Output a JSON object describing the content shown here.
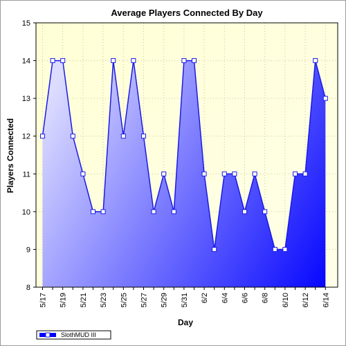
{
  "chart_data": {
    "type": "area",
    "title": "Average Players Connected By Day",
    "xlabel": "Day",
    "ylabel": "Players Connected",
    "ylim": [
      8,
      15
    ],
    "yticks": [
      8,
      9,
      10,
      11,
      12,
      13,
      14,
      15
    ],
    "grid": true,
    "legend_position": "bottom-left",
    "x": [
      "5/17",
      "5/18",
      "5/19",
      "5/20",
      "5/21",
      "5/22",
      "5/23",
      "5/24",
      "5/25",
      "5/26",
      "5/27",
      "5/28",
      "5/29",
      "5/30",
      "5/31",
      "6/1",
      "6/2",
      "6/3",
      "6/4",
      "6/5",
      "6/6",
      "6/7",
      "6/8",
      "6/9",
      "6/10",
      "6/11",
      "6/12",
      "6/13",
      "6/14"
    ],
    "x_tick_labels": [
      "5/17",
      "5/19",
      "5/21",
      "5/23",
      "5/25",
      "5/27",
      "5/29",
      "5/31",
      "6/2",
      "6/4",
      "6/6",
      "6/8",
      "6/10",
      "6/12",
      "6/14"
    ],
    "series": [
      {
        "name": "SlothMUD III",
        "values": [
          12,
          14,
          14,
          12,
          11,
          10,
          10,
          14,
          12,
          14,
          12,
          10,
          11,
          10,
          14,
          14,
          11,
          9,
          11,
          11,
          10,
          11,
          10,
          9,
          9,
          11,
          11,
          14,
          13
        ]
      }
    ],
    "colors": {
      "plot_background_top": "#ffffd6",
      "plot_background_bottom": "#ffffe8",
      "area_light": "#dcdcff",
      "area_dark": "#0000ff",
      "line": "#1a1ae6",
      "marker_fill": "#ffffff",
      "marker_stroke": "#1a1ae6",
      "grid": "#c8c8a0"
    }
  }
}
